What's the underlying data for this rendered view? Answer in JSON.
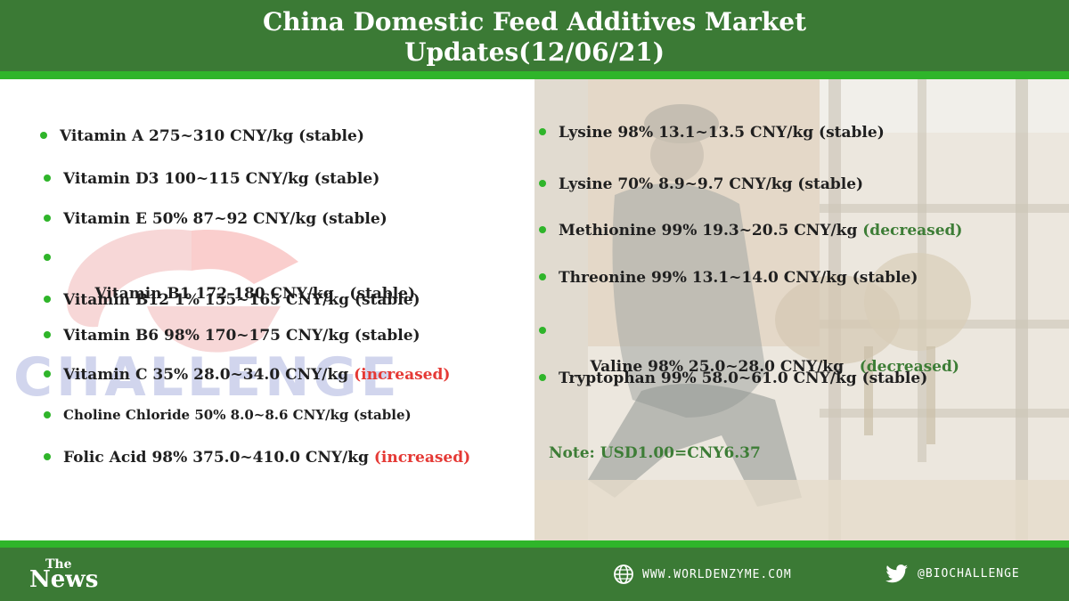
{
  "header": {
    "title_line1": "China Domestic Feed Additives Market",
    "title_line2": "Updates(12/06/21)"
  },
  "watermark": {
    "text": "CHALLENGE"
  },
  "left_items": [
    {
      "text": "Vitamin A 275~310 CNY/kg (stable)",
      "status": ""
    },
    {
      "text": "Vitamin D3 100~115 CNY/kg (stable)",
      "status": ""
    },
    {
      "text": "Vitamin E 50% 87~92 CNY/kg (stable)",
      "status": ""
    },
    {
      "text": "Vitamin B1 172-180 CNY/kg   (stable)",
      "status": ""
    },
    {
      "text": "Vitamin B12 1% 155~165 CNY/kg (stable)",
      "status": ""
    },
    {
      "text": "Vitamin B6 98% 170~175 CNY/kg (stable)",
      "status": ""
    },
    {
      "text": "Vitamin C 35% 28.0~34.0 CNY/kg ",
      "status": "(increased)"
    },
    {
      "text": "Choline Chloride 50% 8.0~8.6 CNY/kg (stable)",
      "status": ""
    },
    {
      "text": "Folic Acid 98% 375.0~410.0 CNY/kg ",
      "status": "(increased)"
    }
  ],
  "right_items": [
    {
      "text": "Lysine 98% 13.1~13.5 CNY/kg (stable)",
      "status": ""
    },
    {
      "text": "Lysine 70% 8.9~9.7 CNY/kg (stable)",
      "status": ""
    },
    {
      "text": "Methionine 99% 19.3~20.5 CNY/kg ",
      "status": "(decreased)"
    },
    {
      "text": "Threonine 99% 13.1~14.0 CNY/kg (stable)",
      "status": ""
    },
    {
      "text": "Valine 98% 25.0~28.0 CNY/kg   ",
      "status": "(decreased)"
    },
    {
      "text": "Tryptophan 99% 58.0~61.0 CNY/kg (stable)",
      "status": ""
    }
  ],
  "note": "Note: USD1.00=CNY6.37",
  "footer": {
    "logo_top": "The",
    "logo_bottom": "News",
    "website": "WWW.WORLDENZYME.COM",
    "twitter": "@BIOCHALLENGE"
  },
  "colors": {
    "header_green": "#3b7a35",
    "accent_green": "#2fb52a",
    "increased_red": "#e53935",
    "decreased_green": "#3d7d36"
  },
  "icons": [
    "globe-icon",
    "twitter-icon",
    "bullet-dot-icon"
  ]
}
